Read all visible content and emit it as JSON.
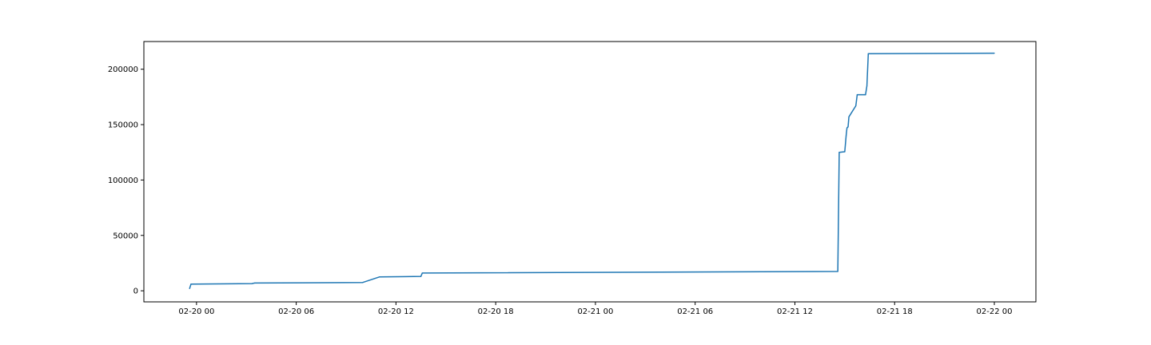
{
  "chart_data": {
    "type": "line",
    "title": "",
    "xlabel": "",
    "ylabel": "",
    "x_axis_kind": "datetime",
    "xlim": [
      "2020-02-19T20:50",
      "2020-02-22T02:30"
    ],
    "ylim": [
      -10000,
      225000
    ],
    "grid": false,
    "legend": "none",
    "x_ticks": [
      {
        "at": "2020-02-20T00:00",
        "label": "02-20 00"
      },
      {
        "at": "2020-02-20T06:00",
        "label": "02-20 06"
      },
      {
        "at": "2020-02-20T12:00",
        "label": "02-20 12"
      },
      {
        "at": "2020-02-20T18:00",
        "label": "02-20 18"
      },
      {
        "at": "2020-02-21T00:00",
        "label": "02-21 00"
      },
      {
        "at": "2020-02-21T06:00",
        "label": "02-21 06"
      },
      {
        "at": "2020-02-21T12:00",
        "label": "02-21 12"
      },
      {
        "at": "2020-02-21T18:00",
        "label": "02-21 18"
      },
      {
        "at": "2020-02-22T00:00",
        "label": "02-22 00"
      }
    ],
    "y_ticks": [
      {
        "at": 0,
        "label": "0"
      },
      {
        "at": 50000,
        "label": "50000"
      },
      {
        "at": 100000,
        "label": "100000"
      },
      {
        "at": 150000,
        "label": "150000"
      },
      {
        "at": 200000,
        "label": "200000"
      }
    ],
    "series": [
      {
        "color": "#1f77b4",
        "points": [
          {
            "x": "2020-02-19T23:35",
            "y": 2000
          },
          {
            "x": "2020-02-19T23:40",
            "y": 6000
          },
          {
            "x": "2020-02-20T03:20",
            "y": 6500
          },
          {
            "x": "2020-02-20T03:30",
            "y": 7000
          },
          {
            "x": "2020-02-20T10:00",
            "y": 7500
          },
          {
            "x": "2020-02-20T11:00",
            "y": 12500
          },
          {
            "x": "2020-02-20T13:30",
            "y": 13000
          },
          {
            "x": "2020-02-20T13:35",
            "y": 16000
          },
          {
            "x": "2020-02-21T14:35",
            "y": 17500
          },
          {
            "x": "2020-02-21T14:40",
            "y": 125000
          },
          {
            "x": "2020-02-21T15:00",
            "y": 125500
          },
          {
            "x": "2020-02-21T15:05",
            "y": 140000
          },
          {
            "x": "2020-02-21T15:08",
            "y": 147000
          },
          {
            "x": "2020-02-21T15:12",
            "y": 148000
          },
          {
            "x": "2020-02-21T15:15",
            "y": 157000
          },
          {
            "x": "2020-02-21T15:40",
            "y": 167000
          },
          {
            "x": "2020-02-21T15:45",
            "y": 177000
          },
          {
            "x": "2020-02-21T16:15",
            "y": 177000
          },
          {
            "x": "2020-02-21T16:20",
            "y": 185000
          },
          {
            "x": "2020-02-21T16:25",
            "y": 214000
          },
          {
            "x": "2020-02-22T00:00",
            "y": 214500
          }
        ]
      }
    ]
  }
}
